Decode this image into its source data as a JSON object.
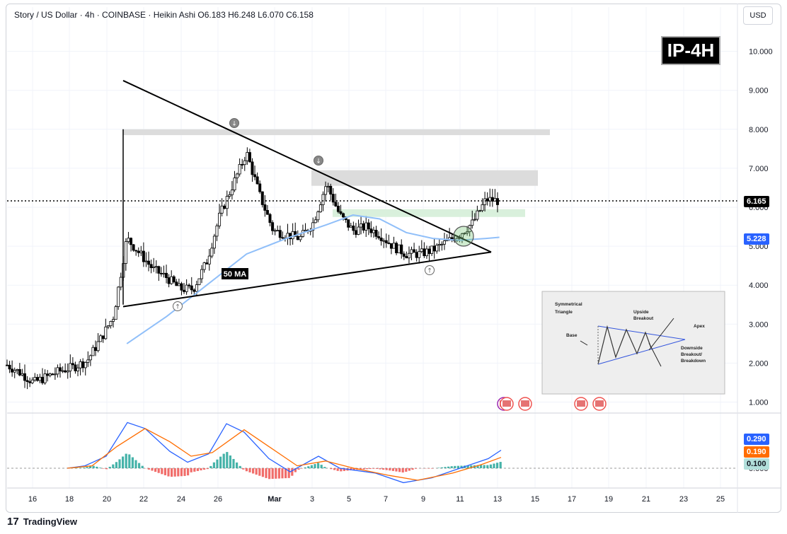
{
  "header": {
    "legend": "Story / US Dollar · 4h · COINBASE · Heikin Ashi   O6.183  H6.248  L6.070  C6.158",
    "currency_button": "USD"
  },
  "badge": "IP-4H",
  "ma_label": "50 MA",
  "price_labels": {
    "last": "6.165",
    "ma": "5.228",
    "macd": "0.290",
    "signal": "0.190",
    "hist": "0.100"
  },
  "footer": "TradingView",
  "inset": {
    "title": "Symmetrical Triangle",
    "labels": [
      "Base",
      "Upside Breakout",
      "Apex",
      "Downside Breakout/ Breakdown"
    ]
  },
  "colors": {
    "up": "#26a69a",
    "down": "#ef5350",
    "ma": "#90bff9",
    "macd": "#2962ff",
    "signal": "#ff6d00",
    "candle": "#000000"
  },
  "chart_data": {
    "type": "candlestick",
    "symbol": "Story / US Dollar",
    "interval": "4h",
    "ohlc_last": {
      "open": 6.183,
      "high": 6.248,
      "low": 6.07,
      "close": 6.158
    },
    "x_ticks": [
      "16",
      "18",
      "20",
      "22",
      "24",
      "26",
      "Mar",
      "3",
      "5",
      "7",
      "9",
      "11",
      "13",
      "15",
      "17",
      "19",
      "21",
      "23",
      "25"
    ],
    "y_ticks": [
      "10.000",
      "9.000",
      "8.000",
      "7.000",
      "6.000",
      "5.000",
      "4.000",
      "3.000",
      "2.000",
      "1.000"
    ],
    "ylim": [
      0.8,
      10.5
    ],
    "macd_ticks": [
      "0.000"
    ],
    "price_series_approx": [
      {
        "t": 0,
        "v": 1.95
      },
      {
        "t": 1,
        "v": 1.75
      },
      {
        "t": 2,
        "v": 1.5
      },
      {
        "t": 3,
        "v": 1.65
      },
      {
        "t": 4,
        "v": 1.8
      },
      {
        "t": 5,
        "v": 1.9
      },
      {
        "t": 6,
        "v": 2.05
      },
      {
        "t": 7,
        "v": 2.6
      },
      {
        "t": 8,
        "v": 3.2
      },
      {
        "t": 9,
        "v": 5.2
      },
      {
        "t": 10,
        "v": 4.8
      },
      {
        "t": 11,
        "v": 4.4
      },
      {
        "t": 12,
        "v": 4.2
      },
      {
        "t": 13,
        "v": 3.9
      },
      {
        "t": 14,
        "v": 3.9
      },
      {
        "t": 15,
        "v": 4.6
      },
      {
        "t": 16,
        "v": 5.8
      },
      {
        "t": 17,
        "v": 6.6
      },
      {
        "t": 18,
        "v": 7.4
      },
      {
        "t": 19,
        "v": 6.3
      },
      {
        "t": 20,
        "v": 5.4
      },
      {
        "t": 21,
        "v": 5.3
      },
      {
        "t": 22,
        "v": 5.2
      },
      {
        "t": 23,
        "v": 5.6
      },
      {
        "t": 24,
        "v": 6.6
      },
      {
        "t": 25,
        "v": 5.8
      },
      {
        "t": 26,
        "v": 5.4
      },
      {
        "t": 27,
        "v": 5.5
      },
      {
        "t": 28,
        "v": 5.3
      },
      {
        "t": 29,
        "v": 5.0
      },
      {
        "t": 30,
        "v": 4.8
      },
      {
        "t": 31,
        "v": 4.8
      },
      {
        "t": 32,
        "v": 4.9
      },
      {
        "t": 33,
        "v": 5.1
      },
      {
        "t": 34,
        "v": 5.3
      },
      {
        "t": 35,
        "v": 5.6
      },
      {
        "t": 36,
        "v": 6.2
      },
      {
        "t": 37,
        "v": 6.16
      }
    ],
    "ma50_approx": [
      {
        "t": 9,
        "v": 2.5
      },
      {
        "t": 12,
        "v": 3.2
      },
      {
        "t": 15,
        "v": 4.0
      },
      {
        "t": 18,
        "v": 4.8
      },
      {
        "t": 21,
        "v": 5.2
      },
      {
        "t": 24,
        "v": 5.55
      },
      {
        "t": 26,
        "v": 5.8
      },
      {
        "t": 28,
        "v": 5.7
      },
      {
        "t": 30,
        "v": 5.35
      },
      {
        "t": 32,
        "v": 5.2
      },
      {
        "t": 34,
        "v": 5.15
      },
      {
        "t": 36,
        "v": 5.2
      },
      {
        "t": 37,
        "v": 5.228
      }
    ],
    "resistance_zones": [
      [
        7.85,
        8.0
      ],
      [
        6.55,
        6.95
      ]
    ],
    "support_zone": [
      5.75,
      5.95
    ],
    "trendlines": {
      "upper": {
        "from": 9.25,
        "to": 4.85
      },
      "lower": {
        "from": 3.45,
        "to": 4.85
      }
    }
  }
}
